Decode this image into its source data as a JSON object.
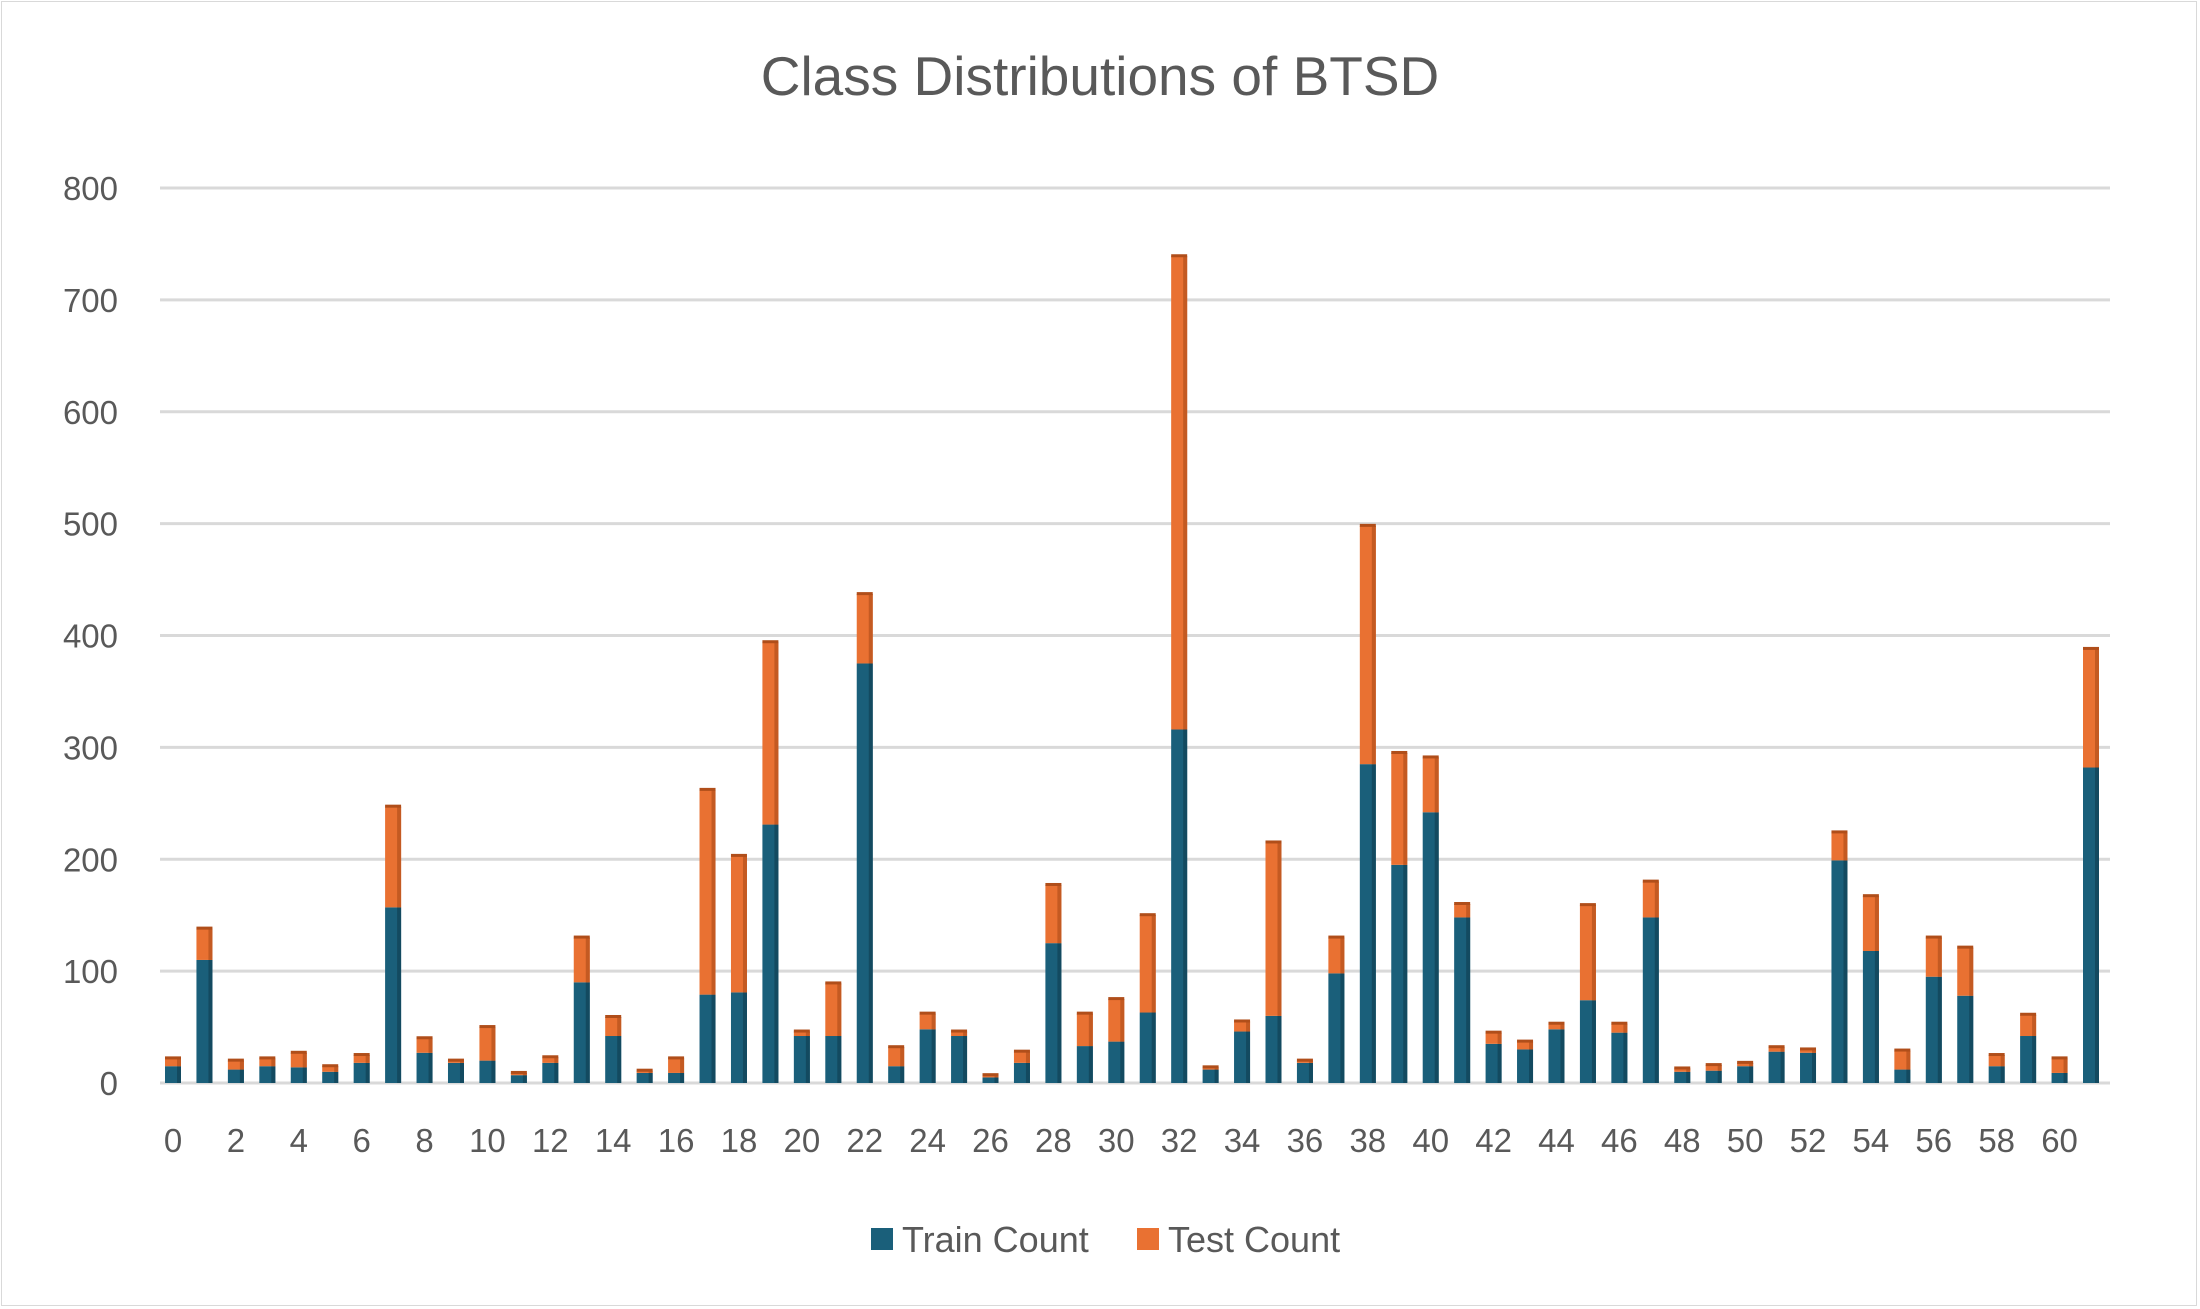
{
  "chart_data": {
    "type": "bar",
    "stacked": true,
    "title": "Class Distributions of BTSD",
    "xlabel": "",
    "ylabel": "",
    "ylim": [
      0,
      800
    ],
    "yticks": [
      0,
      100,
      200,
      300,
      400,
      500,
      600,
      700,
      800
    ],
    "categories": [
      0,
      1,
      2,
      3,
      4,
      5,
      6,
      7,
      8,
      9,
      10,
      11,
      12,
      13,
      14,
      15,
      16,
      17,
      18,
      19,
      20,
      21,
      22,
      23,
      24,
      25,
      26,
      27,
      28,
      29,
      30,
      31,
      32,
      33,
      34,
      35,
      36,
      37,
      38,
      39,
      40,
      41,
      42,
      43,
      44,
      45,
      46,
      47,
      48,
      49,
      50,
      51,
      52,
      53,
      54,
      55,
      56,
      57,
      58,
      59,
      60,
      61
    ],
    "tick_labels_shown": [
      0,
      2,
      4,
      6,
      8,
      10,
      12,
      14,
      16,
      18,
      20,
      22,
      24,
      26,
      28,
      30,
      32,
      34,
      36,
      38,
      40,
      42,
      44,
      46,
      48,
      50,
      52,
      54,
      56,
      58,
      60
    ],
    "grid": true,
    "legend_position": "bottom",
    "colors": {
      "Train Count": "#1a5f7a",
      "Test Count": "#e97132"
    },
    "series": [
      {
        "name": "Train Count",
        "values": [
          15,
          110,
          12,
          15,
          14,
          10,
          18,
          157,
          27,
          18,
          20,
          7,
          18,
          90,
          42,
          9,
          9,
          79,
          81,
          231,
          42,
          42,
          375,
          15,
          48,
          42,
          5,
          18,
          125,
          33,
          37,
          63,
          316,
          12,
          46,
          60,
          18,
          98,
          285,
          195,
          242,
          148,
          35,
          30,
          48,
          74,
          45,
          148,
          10,
          11,
          15,
          28,
          27,
          199,
          118,
          12,
          95,
          78,
          15,
          42,
          9,
          282
        ]
      },
      {
        "name": "Test Count",
        "values": [
          7,
          28,
          8,
          7,
          13,
          5,
          7,
          90,
          13,
          2,
          30,
          2,
          5,
          40,
          17,
          2,
          13,
          183,
          122,
          163,
          4,
          47,
          62,
          17,
          14,
          4,
          2,
          10,
          52,
          29,
          38,
          87,
          423,
          2,
          9,
          155,
          2,
          32,
          213,
          100,
          49,
          12,
          10,
          7,
          5,
          85,
          8,
          32,
          3,
          5,
          3,
          4,
          3,
          25,
          49,
          17,
          35,
          43,
          10,
          19,
          13,
          106
        ]
      }
    ]
  }
}
